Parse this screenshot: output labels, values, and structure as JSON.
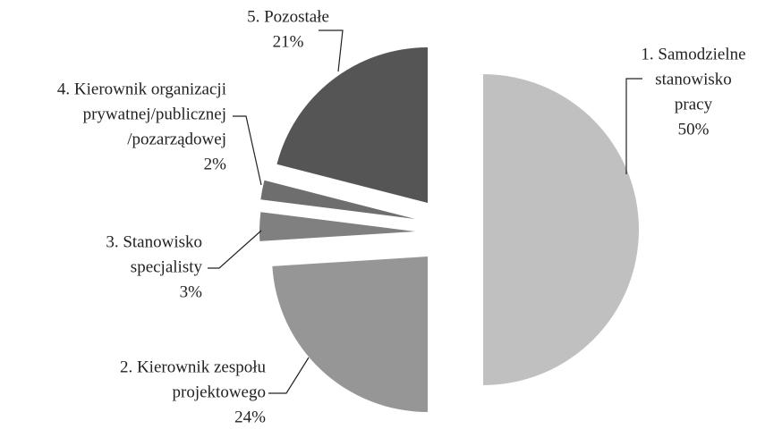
{
  "chart_data": {
    "type": "pie",
    "categories": [
      [
        "1. Samodzielne",
        "stanowisko",
        "pracy"
      ],
      [
        "2. Kierownik zespołu",
        "projektowego"
      ],
      [
        "3. Stanowisko",
        "specjalisty"
      ],
      [
        "4. Kierownik organizacji",
        "prywatnej/publicznej",
        "/pozarządowej"
      ],
      [
        "5. Pozostałe"
      ]
    ],
    "values": [
      50,
      24,
      3,
      2,
      21
    ],
    "value_labels": [
      "50%",
      "24%",
      "3%",
      "2%",
      "21%"
    ],
    "colors": [
      "#c0c0c0",
      "#969696",
      "#808080",
      "#6e6e6e",
      "#555555"
    ]
  }
}
